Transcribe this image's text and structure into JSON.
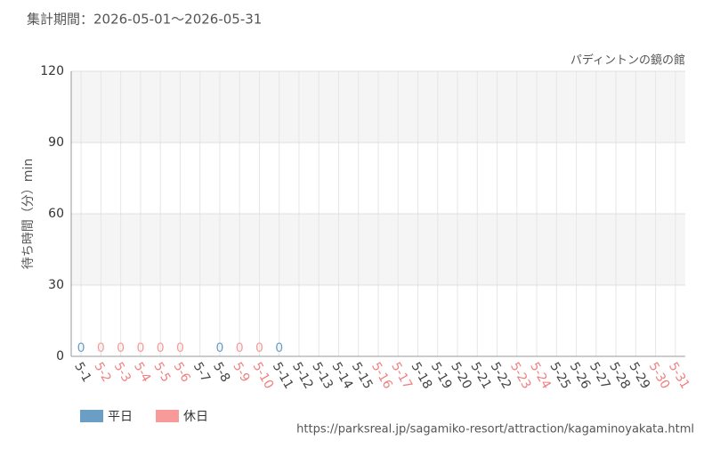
{
  "chart_data": {
    "type": "bar",
    "title": "集計期間：2026-05-01～2026-05-31",
    "subtitle": "パディントンの鏡の館",
    "y_label": "待ち時間（分）min",
    "source": "https://parksreal.jp/sagamiko-resort/attraction/kagaminoyakata.html",
    "categories": [
      "5-1",
      "5-2",
      "5-3",
      "5-4",
      "5-5",
      "5-6",
      "5-7",
      "5-8",
      "5-9",
      "5-10",
      "5-11",
      "5-12",
      "5-13",
      "5-14",
      "5-15",
      "5-16",
      "5-17",
      "5-18",
      "5-19",
      "5-20",
      "5-21",
      "5-22",
      "5-23",
      "5-24",
      "5-25",
      "5-26",
      "5-27",
      "5-28",
      "5-29",
      "5-30",
      "5-31"
    ],
    "category_colors": [
      "#444",
      "#f08080",
      "#f08080",
      "#f08080",
      "#f08080",
      "#f08080",
      "#444",
      "#444",
      "#f08080",
      "#f08080",
      "#444",
      "#444",
      "#444",
      "#444",
      "#444",
      "#f08080",
      "#f08080",
      "#444",
      "#444",
      "#444",
      "#444",
      "#444",
      "#f08080",
      "#f08080",
      "#444",
      "#444",
      "#444",
      "#444",
      "#444",
      "#f08080",
      "#f08080"
    ],
    "series": [
      {
        "name": "平日",
        "color": "#6a9ec5",
        "values": [
          0,
          null,
          null,
          null,
          null,
          null,
          null,
          0,
          null,
          null,
          0,
          null,
          null,
          null,
          null,
          null,
          null,
          null,
          null,
          null,
          null,
          null,
          null,
          null,
          null,
          null,
          null,
          null,
          null,
          null,
          null
        ]
      },
      {
        "name": "休日",
        "color": "#f89a9a",
        "values": [
          null,
          0,
          0,
          0,
          0,
          0,
          null,
          null,
          0,
          0,
          null,
          null,
          null,
          null,
          null,
          null,
          null,
          null,
          null,
          null,
          null,
          null,
          null,
          null,
          null,
          null,
          null,
          null,
          null,
          null,
          null
        ]
      }
    ],
    "ylim": [
      0,
      120
    ],
    "yticks": [
      0,
      30,
      60,
      90,
      120
    ],
    "grid": true,
    "banded": true
  }
}
